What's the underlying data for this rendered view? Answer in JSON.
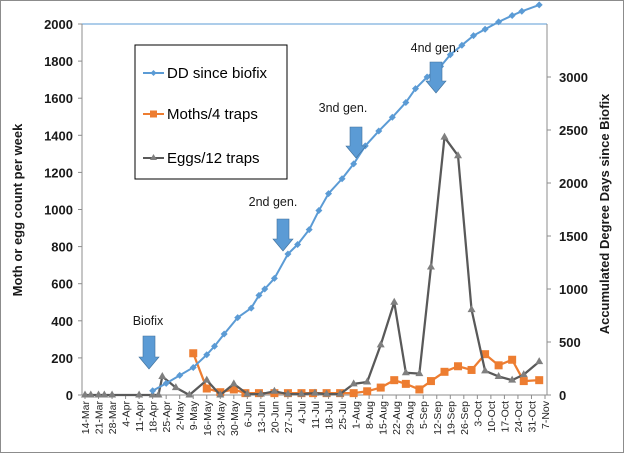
{
  "chart_data": {
    "type": "line",
    "title": "",
    "xlabel": "",
    "ylabel": "Moth or egg count per week",
    "y2label": "Accumulated Degree Days since Biofix",
    "ylim": [
      0,
      2000
    ],
    "y2lim": [
      0,
      3500
    ],
    "yticks": [
      0,
      200,
      400,
      600,
      800,
      1000,
      1200,
      1400,
      1600,
      1800,
      2000
    ],
    "y2ticks": [
      0,
      500,
      1000,
      1500,
      2000,
      2500,
      3000
    ],
    "grid": false,
    "legend_position": "top-left",
    "x_tick_labels": [
      "14-Mar",
      "21-Mar",
      "28-Mar",
      "4-Apr",
      "11-Apr",
      "18-Apr",
      "25-Apr",
      "2-May",
      "9-May",
      "16-May",
      "23-May",
      "30-May",
      "6-Jun",
      "13-Jun",
      "20-Jun",
      "27-Jun",
      "4-Jul",
      "11-Jul",
      "18-Jul",
      "25-Jul",
      "1-Aug",
      "8-Aug",
      "15-Aug",
      "22-Aug",
      "29-Aug",
      "5-Sep",
      "12-Sep",
      "19-Sep",
      "26-Sep",
      "3-Oct",
      "10-Oct",
      "17-Oct",
      "24-Oct",
      "31-Oct",
      "7-Nov"
    ],
    "x_unit": "days since 14-Mar",
    "xlim": [
      0,
      238
    ],
    "series": [
      {
        "name": "DD since biofix",
        "axis": "right",
        "color": "#5b9bd5",
        "marker": "diamond",
        "x": [
          35,
          42,
          49,
          56,
          63,
          67,
          72,
          79,
          86,
          90,
          93,
          98,
          105,
          110,
          116,
          121,
          126,
          133,
          139,
          145,
          152,
          159,
          166,
          171,
          177,
          184,
          189,
          195,
          201,
          207,
          214,
          221,
          226,
          235
        ],
        "values": [
          40,
          110,
          185,
          260,
          380,
          460,
          575,
          730,
          820,
          940,
          1000,
          1100,
          1330,
          1420,
          1560,
          1740,
          1900,
          2040,
          2180,
          2350,
          2490,
          2620,
          2760,
          2890,
          3000,
          3100,
          3210,
          3300,
          3390,
          3450,
          3520,
          3580,
          3620,
          3680
        ]
      },
      {
        "name": "Moths/4 traps",
        "axis": "left",
        "color": "#ed7d31",
        "marker": "square",
        "x": [
          56,
          63,
          70,
          77,
          83,
          90,
          98,
          105,
          112,
          118,
          125,
          132,
          139,
          146,
          153,
          160,
          166,
          173,
          179,
          186,
          193,
          200,
          207,
          214,
          221,
          227,
          235
        ],
        "values": [
          225,
          35,
          15,
          30,
          10,
          10,
          10,
          10,
          10,
          10,
          10,
          10,
          10,
          20,
          40,
          80,
          60,
          30,
          75,
          125,
          155,
          135,
          220,
          160,
          190,
          75,
          80
        ]
      },
      {
        "name": "Eggs/12 traps",
        "axis": "left",
        "color": "#595959",
        "marker": "triangle",
        "x": [
          0,
          3,
          7,
          10,
          14,
          28,
          35,
          38,
          40,
          47,
          54,
          63,
          70,
          77,
          84,
          91,
          98,
          105,
          112,
          119,
          125,
          132,
          139,
          146,
          153,
          160,
          166,
          173,
          179,
          186,
          193,
          200,
          207,
          214,
          221,
          227,
          235
        ],
        "values": [
          0,
          0,
          0,
          0,
          0,
          0,
          0,
          0,
          100,
          40,
          0,
          80,
          0,
          60,
          5,
          5,
          20,
          5,
          5,
          10,
          5,
          5,
          60,
          70,
          270,
          500,
          120,
          115,
          690,
          1390,
          1290,
          460,
          130,
          100,
          80,
          110,
          180
        ]
      }
    ],
    "annotations": [
      {
        "text": "Biofix",
        "x": 35,
        "arrow_target": 140
      },
      {
        "text": "2nd gen.",
        "x": 107,
        "arrow_target": 770
      },
      {
        "text": "3nd gen.",
        "x": 140,
        "arrow_target": 1280
      },
      {
        "text": "4nd gen.",
        "x": 184,
        "arrow_target": 1630
      }
    ]
  },
  "legend": {
    "items": [
      {
        "label": "DD since biofix",
        "color": "#5b9bd5",
        "marker": "diamond"
      },
      {
        "label": "Moths/4 traps",
        "color": "#ed7d31",
        "marker": "square"
      },
      {
        "label": "Eggs/12 traps",
        "color": "#595959",
        "marker": "triangle"
      }
    ]
  },
  "colors": {
    "dd": "#5b9bd5",
    "moths": "#ed7d31",
    "eggs": "#595959",
    "arrow": "#5b9bd5",
    "axis": "#8c8c8c"
  }
}
